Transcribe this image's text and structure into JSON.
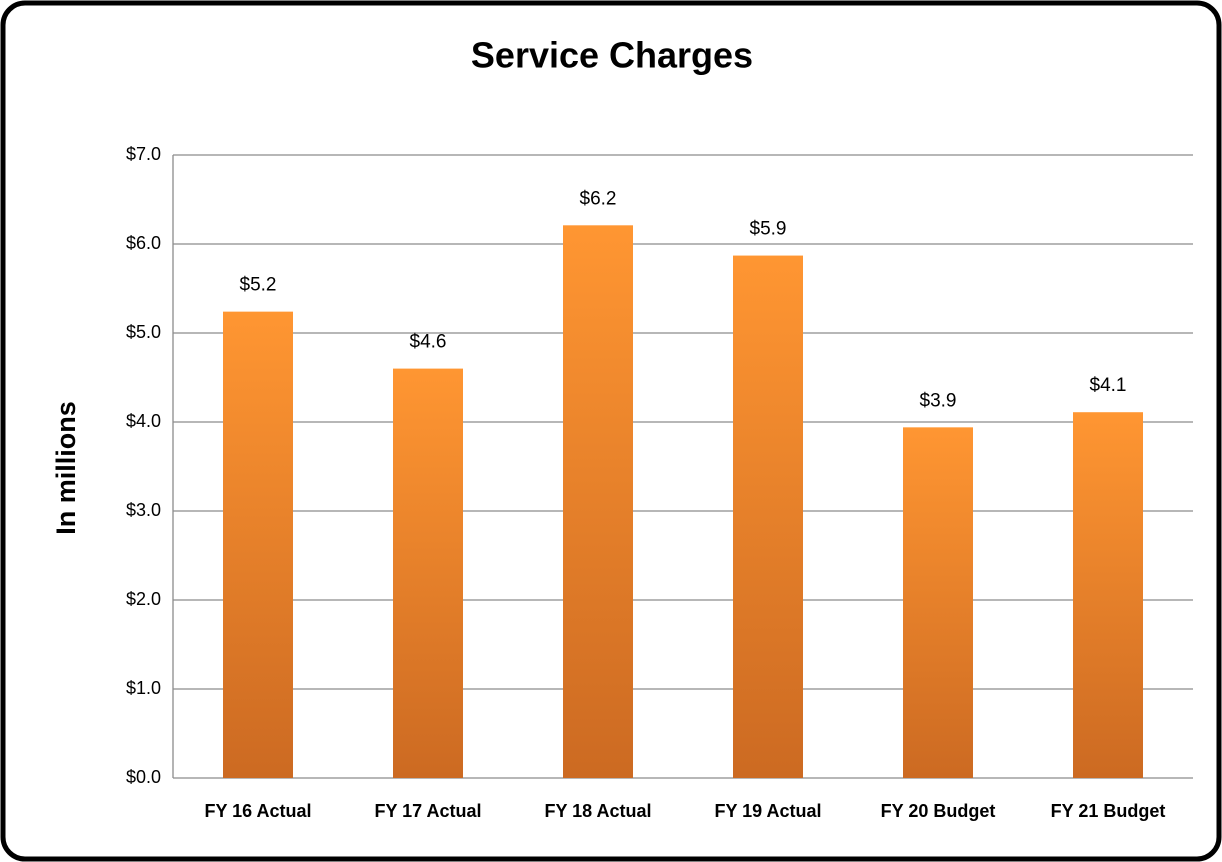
{
  "chart_data": {
    "type": "bar",
    "title": "Service Charges",
    "y_label": "In millions",
    "categories": [
      "FY 16 Actual",
      "FY 17 Actual",
      "FY 18 Actual",
      "FY 19 Actual",
      "FY 20 Budget",
      "FY 21 Budget"
    ],
    "values": [
      5.24,
      4.6,
      6.21,
      5.87,
      3.94,
      4.11
    ],
    "value_labels": [
      "$5.2",
      "$4.6",
      "$6.2",
      "$5.9",
      "$3.9",
      "$4.1"
    ],
    "color": "#f28a2a",
    "ylim": [
      0,
      7
    ],
    "yticks": [
      {
        "value": 0,
        "label": "$0.0"
      },
      {
        "value": 1,
        "label": "$1.0"
      },
      {
        "value": 2,
        "label": "$2.0"
      },
      {
        "value": 3,
        "label": "$3.0"
      },
      {
        "value": 4,
        "label": "$4.0"
      },
      {
        "value": 5,
        "label": "$5.0"
      },
      {
        "value": 6,
        "label": "$6.0"
      },
      {
        "value": 7,
        "label": "$7.0"
      }
    ],
    "grid": true
  }
}
